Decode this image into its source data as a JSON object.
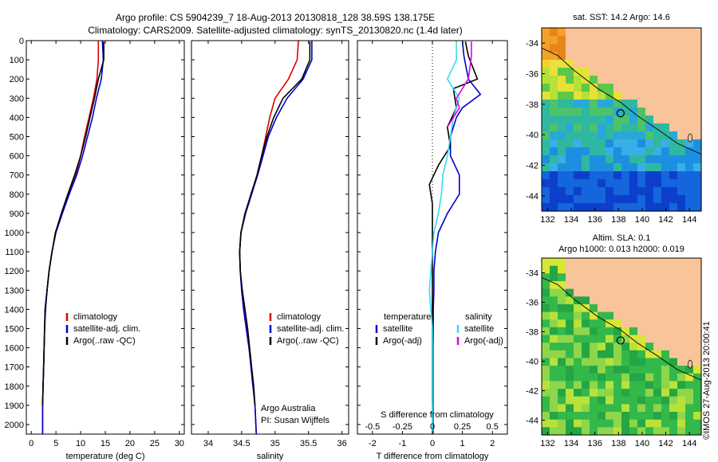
{
  "header": {
    "line1": "Argo profile: CS 5904239_7 18-Aug-2013 20130818_128 38.59S 138.175E",
    "line2": "Climatology: CARS2009. Satellite-adjusted climatology: synTS_20130820.nc (1.4d later)"
  },
  "colors": {
    "climatology": "#dd0000",
    "satellite": "#0000cc",
    "argo": "#000000",
    "salinity_sat": "#33ddee",
    "salinity_argo": "#dd00dd"
  },
  "chart_data": [
    {
      "type": "line",
      "name": "temperature-profile",
      "xlabel": "temperature (deg C)",
      "xlim": [
        -1,
        31
      ],
      "ylim": [
        2050,
        0
      ],
      "xticks": [
        0,
        5,
        10,
        15,
        20,
        25,
        30
      ],
      "yticks": [
        0,
        100,
        200,
        300,
        400,
        500,
        600,
        700,
        800,
        900,
        1000,
        1100,
        1200,
        1300,
        1400,
        1500,
        1600,
        1700,
        1800,
        1900,
        2000
      ],
      "legend": [
        "climatology",
        "satellite-adj. clim.",
        "Argo(..raw -QC)"
      ],
      "series": [
        {
          "name": "climatology",
          "color": "#dd0000",
          "x": [
            13.6,
            13.6,
            13.3,
            12.6,
            11.7,
            10.8,
            10.0,
            9.0,
            7.6,
            6.2,
            4.9,
            4.2,
            3.6,
            3.2,
            2.8,
            2.7,
            2.6,
            2.5,
            2.4,
            2.3,
            2.3
          ],
          "y": [
            0,
            100,
            200,
            300,
            400,
            500,
            600,
            700,
            800,
            900,
            1000,
            1100,
            1200,
            1300,
            1400,
            1500,
            1600,
            1700,
            1800,
            1900,
            2050
          ]
        },
        {
          "name": "satellite-adj. clim.",
          "color": "#0000cc",
          "x": [
            14.4,
            14.6,
            14.2,
            13.2,
            12.4,
            11.4,
            10.4,
            9.2,
            7.7,
            6.3,
            5.0,
            4.2,
            3.6,
            3.2,
            2.9,
            2.7,
            2.6,
            2.5,
            2.4,
            2.3,
            2.3
          ],
          "y": [
            0,
            100,
            200,
            300,
            400,
            500,
            600,
            700,
            800,
            900,
            1000,
            1100,
            1200,
            1300,
            1400,
            1500,
            1600,
            1700,
            1800,
            1900,
            2050
          ]
        },
        {
          "name": "Argo(..raw -QC)",
          "color": "#000000",
          "x": [
            14.7,
            14.7,
            13.6,
            12.8,
            11.9,
            11.0,
            10.0,
            8.8,
            7.4,
            6.1,
            4.9,
            4.2,
            3.6,
            3.2,
            2.8,
            2.7,
            2.6,
            2.5,
            2.4,
            2.3
          ],
          "y": [
            5,
            100,
            200,
            300,
            400,
            500,
            600,
            700,
            800,
            900,
            1000,
            1100,
            1200,
            1300,
            1400,
            1500,
            1600,
            1700,
            1800,
            1900
          ]
        }
      ]
    },
    {
      "type": "line",
      "name": "salinity-profile",
      "xlabel": "salinity",
      "xlim": [
        33.75,
        36.1
      ],
      "ylim": [
        2050,
        0
      ],
      "xticks": [
        34,
        34.5,
        35,
        35.5,
        36
      ],
      "legend": [
        "climatology",
        "satellite-adj. clim.",
        "Argo(..raw -QC)"
      ],
      "annotation": [
        "Argo Australia",
        "PI: Susan Wijffels"
      ],
      "series": [
        {
          "name": "climatology",
          "color": "#dd0000",
          "x": [
            35.35,
            35.33,
            35.2,
            35.0,
            34.92,
            34.86,
            34.8,
            34.73,
            34.65,
            34.55,
            34.49,
            34.47,
            34.48,
            34.5,
            34.53,
            34.57,
            34.61,
            34.64,
            34.67,
            34.7,
            34.72
          ],
          "y": [
            0,
            100,
            200,
            300,
            400,
            500,
            600,
            700,
            800,
            900,
            1000,
            1100,
            1200,
            1300,
            1400,
            1500,
            1600,
            1700,
            1800,
            1900,
            2050
          ]
        },
        {
          "name": "satellite-adj. clim.",
          "color": "#0000cc",
          "x": [
            35.55,
            35.55,
            35.42,
            35.18,
            35.02,
            34.9,
            34.82,
            34.74,
            34.65,
            34.56,
            34.49,
            34.47,
            34.48,
            34.5,
            34.53,
            34.57,
            34.61,
            34.64,
            34.67,
            34.7,
            34.72
          ],
          "y": [
            0,
            100,
            200,
            300,
            400,
            500,
            600,
            700,
            800,
            900,
            1000,
            1100,
            1200,
            1300,
            1400,
            1500,
            1600,
            1700,
            1800,
            1900,
            2050
          ]
        },
        {
          "name": "Argo(..raw -QC)",
          "color": "#000000",
          "x": [
            35.52,
            35.52,
            35.4,
            35.12,
            34.98,
            34.88,
            34.8,
            34.73,
            34.64,
            34.55,
            34.49,
            34.47,
            34.48,
            34.51,
            34.55,
            34.59,
            34.62,
            34.65,
            34.68,
            34.7
          ],
          "y": [
            5,
            100,
            200,
            300,
            400,
            500,
            600,
            700,
            800,
            900,
            1000,
            1100,
            1200,
            1300,
            1400,
            1500,
            1600,
            1700,
            1800,
            1900
          ]
        }
      ]
    },
    {
      "type": "line",
      "name": "difference-profile",
      "xlabel": "T difference from climatology",
      "xlabel_top": "S difference from climatology",
      "xlim": [
        -2.5,
        2.5
      ],
      "ylim": [
        2050,
        0
      ],
      "xticks": [
        -2,
        -1,
        0,
        1,
        2
      ],
      "xticks_top": [
        "-0.5",
        "-0.25",
        "0",
        "0.25",
        "0.5"
      ],
      "xticks_top_pos": [
        -2,
        -1,
        0,
        1,
        2
      ],
      "legend_left": {
        "title": "temperature",
        "items": [
          "satellite",
          "Argo(-adj)"
        ]
      },
      "legend_right": {
        "title": "salinity",
        "items": [
          "satellite",
          "Argo(-adj)"
        ]
      },
      "series": [
        {
          "name": "T satellite",
          "color": "#0000cc",
          "x": [
            1.0,
            1.05,
            1.2,
            1.6,
            1.0,
            0.8,
            0.6,
            0.6,
            0.9,
            0.9,
            0.5,
            0.2,
            0.1,
            0.05,
            0.05,
            0.03,
            0.03,
            0.02,
            0.02,
            0.02,
            0.02
          ],
          "y": [
            0,
            80,
            200,
            280,
            350,
            400,
            500,
            600,
            700,
            800,
            900,
            1000,
            1100,
            1200,
            1300,
            1400,
            1500,
            1600,
            1700,
            1800,
            2050
          ]
        },
        {
          "name": "T Argo(-adj)",
          "color": "#000000",
          "x": [
            1.1,
            1.2,
            1.5,
            0.7,
            0.8,
            0.5,
            0.6,
            0.2,
            -0.1,
            0.0,
            0.0,
            0.0,
            0.0,
            0.0,
            0.0,
            0.0,
            0.0,
            0.0,
            0.0,
            0.0
          ],
          "y": [
            5,
            80,
            200,
            250,
            350,
            450,
            550,
            650,
            750,
            850,
            950,
            1050,
            1150,
            1250,
            1350,
            1450,
            1550,
            1650,
            1750,
            1900
          ]
        },
        {
          "name": "S satellite",
          "color": "#33ddee",
          "x": [
            0.8,
            0.8,
            0.5,
            0.9,
            0.7,
            0.6,
            0.5,
            0.35,
            0.3,
            0.2,
            0.05,
            0.0,
            -0.05,
            -0.1,
            -0.05,
            0.0,
            0.0,
            0.0,
            0.0,
            0.0,
            0.0
          ],
          "y": [
            0,
            100,
            200,
            300,
            400,
            500,
            600,
            700,
            800,
            900,
            1000,
            1100,
            1200,
            1300,
            1400,
            1500,
            1600,
            1700,
            1800,
            1900,
            2050
          ]
        },
        {
          "name": "S Argo(-adj)",
          "color": "#dd00dd",
          "x": [
            1.3,
            1.3,
            1.2,
            1.0,
            0.8,
            0.9,
            0.7,
            0.5
          ],
          "y": [
            5,
            80,
            200,
            250,
            300,
            350,
            400,
            450
          ]
        }
      ]
    },
    {
      "type": "heatmap",
      "name": "sst-map",
      "title": "sat. SST: 14.2 Argo: 14.6",
      "xlim": [
        131.5,
        145
      ],
      "ylim": [
        -45,
        -33
      ],
      "xticks": [
        132,
        134,
        136,
        138,
        140,
        142,
        144
      ],
      "yticks": [
        -34,
        -36,
        -38,
        -40,
        -42,
        -44
      ],
      "marker": {
        "lon": 138.175,
        "lat": -38.59
      }
    },
    {
      "type": "heatmap",
      "name": "sla-map",
      "title_line1": "Altim. SLA: 0.1",
      "title_line2": "Argo h1000: 0.013 h2000: 0.019",
      "xlim": [
        131.5,
        145
      ],
      "ylim": [
        -45,
        -33
      ],
      "xticks": [
        132,
        134,
        136,
        138,
        140,
        142,
        144
      ],
      "yticks": [
        -34,
        -36,
        -38,
        -40,
        -42,
        -44
      ],
      "marker": {
        "lon": 138.175,
        "lat": -38.59
      }
    }
  ],
  "footer": {
    "credit": "©IMOS 27-Aug-2013 20:00:41"
  }
}
